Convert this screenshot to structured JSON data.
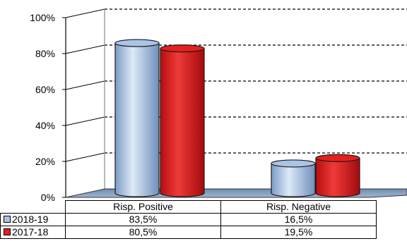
{
  "chart_data": {
    "type": "bar",
    "title": "",
    "xlabel": "",
    "ylabel": "",
    "ylim": [
      0,
      100
    ],
    "y_ticks": [
      "0%",
      "20%",
      "40%",
      "60%",
      "80%",
      "100%"
    ],
    "y_tick_values": [
      0,
      20,
      40,
      60,
      80,
      100
    ],
    "categories": [
      "Risp. Positive",
      "Risp. Negative"
    ],
    "series": [
      {
        "name": "2018-19",
        "values": [
          83.5,
          16.5
        ],
        "labels": [
          "83,5%",
          "16,5%"
        ],
        "color": "#a9c4e6"
      },
      {
        "name": "2017-18",
        "values": [
          80.5,
          19.5
        ],
        "labels": [
          "80,5%",
          "19,5%"
        ],
        "color": "#e52020"
      }
    ],
    "grid": true,
    "grid_style": "dashed",
    "style": "3d-cylinder",
    "legend": "data-table-below"
  }
}
